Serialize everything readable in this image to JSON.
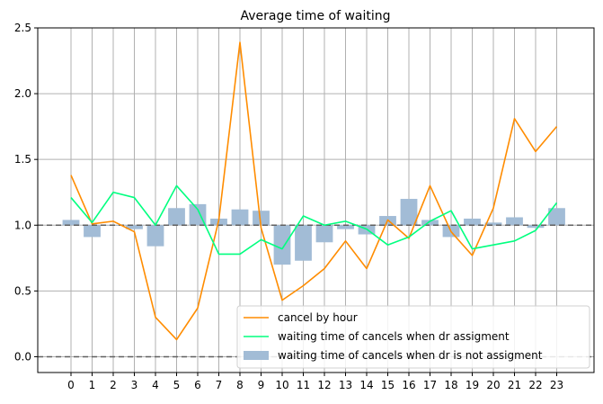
{
  "chart_data": {
    "type": "bar",
    "title": "Average time of waiting",
    "xlabel": "",
    "ylabel": "",
    "categories": [
      "0",
      "1",
      "2",
      "3",
      "4",
      "5",
      "6",
      "7",
      "8",
      "9",
      "10",
      "11",
      "12",
      "13",
      "14",
      "15",
      "16",
      "17",
      "18",
      "19",
      "20",
      "21",
      "22",
      "23"
    ],
    "ylim": [
      -0.12,
      2.5
    ],
    "yticks": [
      "0.0",
      "0.5",
      "1.0",
      "1.5",
      "2.0",
      "2.5"
    ],
    "grid": true,
    "legend_position": "lower-right",
    "reference_lines": [
      1.0,
      0.0
    ],
    "bar_baseline": 1.0,
    "series": [
      {
        "name": "cancel by hour",
        "kind": "line",
        "color": "#ff8c00",
        "values": [
          1.38,
          1.01,
          1.03,
          0.95,
          0.3,
          0.13,
          0.37,
          1.04,
          2.39,
          0.98,
          0.43,
          0.54,
          0.67,
          0.88,
          0.67,
          1.04,
          0.9,
          1.3,
          0.95,
          0.77,
          1.13,
          1.81,
          1.56,
          1.75
        ]
      },
      {
        "name": "waiting time of cancels when dr assigment",
        "kind": "line",
        "color": "#00ff7f",
        "values": [
          1.21,
          1.02,
          1.25,
          1.21,
          1.0,
          1.3,
          1.12,
          0.78,
          0.78,
          0.89,
          0.82,
          1.07,
          1.0,
          1.03,
          0.97,
          0.85,
          0.91,
          1.03,
          1.11,
          0.82,
          0.85,
          0.88,
          0.96,
          1.17
        ]
      },
      {
        "name": "waiting time of cancels when dr is not assigment",
        "kind": "bar",
        "color": "#a2bcd6",
        "values": [
          1.04,
          0.91,
          1.0,
          0.97,
          0.84,
          1.13,
          1.16,
          1.05,
          1.12,
          1.11,
          0.7,
          0.73,
          0.87,
          0.97,
          0.93,
          1.07,
          1.2,
          1.04,
          0.91,
          1.05,
          1.02,
          1.06,
          0.98,
          1.13
        ]
      }
    ]
  }
}
